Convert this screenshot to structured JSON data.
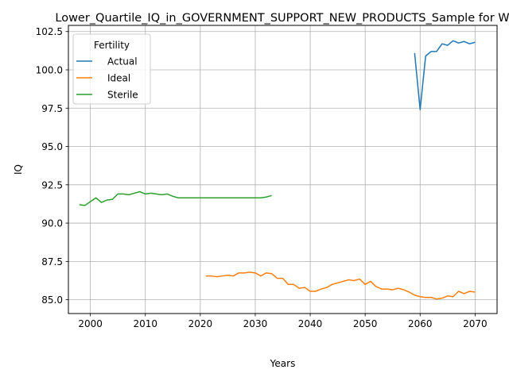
{
  "chart_data": {
    "type": "line",
    "title": "Lower_Quartile_IQ_in_GOVERNMENT_SUPPORT_NEW_PRODUCTS_Sample for W",
    "xlabel": "Years",
    "ylabel": "IQ",
    "xlim": [
      1996,
      2074
    ],
    "ylim": [
      84.1,
      102.9
    ],
    "xticks": [
      2000,
      2010,
      2020,
      2030,
      2040,
      2050,
      2060,
      2070
    ],
    "yticks": [
      85.0,
      87.5,
      90.0,
      92.5,
      95.0,
      97.5,
      100.0,
      102.5
    ],
    "grid": true,
    "legend": {
      "title": "Fertility",
      "placement": "upper-left"
    },
    "series": [
      {
        "name": "Actual",
        "color": "#1f77b4",
        "x": [
          2059,
          2060,
          2061,
          2062,
          2063,
          2064,
          2065,
          2066,
          2067,
          2068,
          2069,
          2070
        ],
        "y": [
          101.1,
          97.4,
          100.9,
          101.2,
          101.2,
          101.7,
          101.6,
          101.9,
          101.75,
          101.85,
          101.7,
          101.8
        ]
      },
      {
        "name": "Ideal",
        "color": "#ff7f0e",
        "x": [
          2021,
          2022,
          2023,
          2024,
          2025,
          2026,
          2027,
          2028,
          2029,
          2030,
          2031,
          2032,
          2033,
          2034,
          2035,
          2036,
          2037,
          2038,
          2039,
          2040,
          2041,
          2042,
          2043,
          2044,
          2045,
          2046,
          2047,
          2048,
          2049,
          2050,
          2051,
          2052,
          2053,
          2054,
          2055,
          2056,
          2057,
          2058,
          2059,
          2060,
          2061,
          2062,
          2063,
          2064,
          2065,
          2066,
          2067,
          2068,
          2069,
          2070
        ],
        "y": [
          86.55,
          86.55,
          86.5,
          86.55,
          86.6,
          86.55,
          86.75,
          86.75,
          86.8,
          86.75,
          86.55,
          86.75,
          86.7,
          86.4,
          86.4,
          86.0,
          86.0,
          85.75,
          85.8,
          85.55,
          85.55,
          85.7,
          85.8,
          86.0,
          86.1,
          86.2,
          86.3,
          86.25,
          86.35,
          86.0,
          86.2,
          85.85,
          85.7,
          85.7,
          85.65,
          85.75,
          85.65,
          85.5,
          85.3,
          85.2,
          85.15,
          85.15,
          85.05,
          85.1,
          85.25,
          85.2,
          85.55,
          85.4,
          85.55,
          85.5
        ]
      },
      {
        "name": "Sterile",
        "color": "#2ca02c",
        "x": [
          1998,
          1999,
          2000,
          2001,
          2002,
          2003,
          2004,
          2005,
          2006,
          2007,
          2008,
          2009,
          2010,
          2011,
          2012,
          2013,
          2014,
          2015,
          2016,
          2017,
          2018,
          2019,
          2020,
          2021,
          2022,
          2023,
          2024,
          2025,
          2026,
          2027,
          2028,
          2029,
          2030,
          2031,
          2032,
          2033
        ],
        "y": [
          91.2,
          91.15,
          91.4,
          91.65,
          91.35,
          91.5,
          91.55,
          91.9,
          91.9,
          91.85,
          91.95,
          92.05,
          91.9,
          91.95,
          91.9,
          91.85,
          91.9,
          91.75,
          91.65,
          91.65,
          91.65,
          91.65,
          91.65,
          91.65,
          91.65,
          91.65,
          91.65,
          91.65,
          91.65,
          91.65,
          91.65,
          91.65,
          91.65,
          91.65,
          91.7,
          91.8
        ]
      }
    ]
  }
}
